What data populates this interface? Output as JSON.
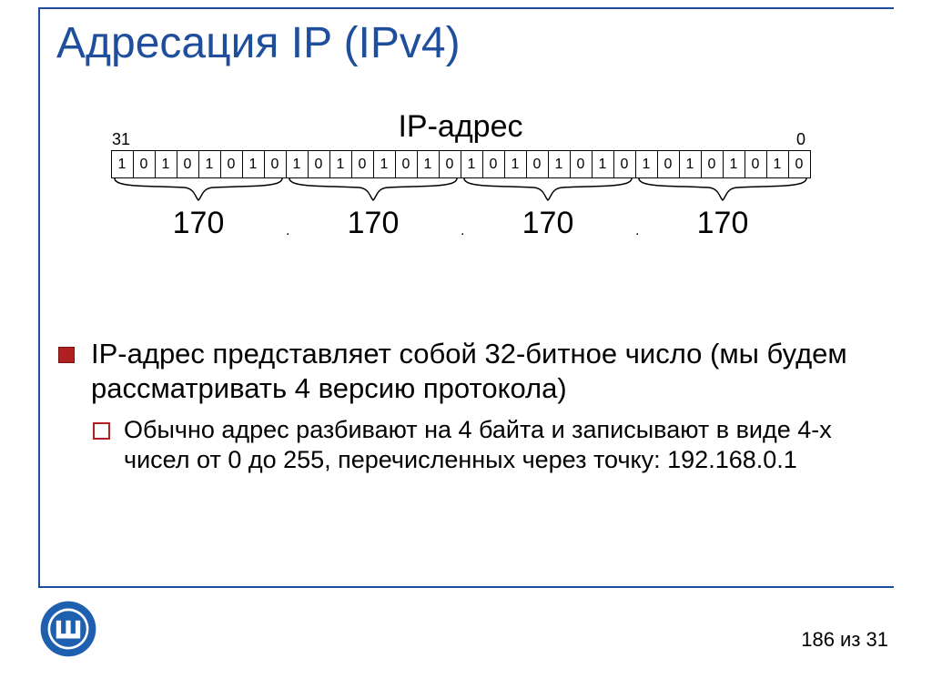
{
  "title": "Адресация IP (IPv4)",
  "diagram": {
    "heading": "IP-адрес",
    "bit_hi": "31",
    "bit_lo": "0",
    "bits": [
      "1",
      "0",
      "1",
      "0",
      "1",
      "0",
      "1",
      "0",
      "1",
      "0",
      "1",
      "0",
      "1",
      "0",
      "1",
      "0",
      "1",
      "0",
      "1",
      "0",
      "1",
      "0",
      "1",
      "0",
      "1",
      "0",
      "1",
      "0",
      "1",
      "0",
      "1",
      "0"
    ],
    "octets": [
      "170",
      "170",
      "170",
      "170"
    ],
    "dot": ".",
    "brace_stroke": "#000000",
    "cell_border": "#000000"
  },
  "bullets": {
    "l1": "IP-адрес представляет собой 32-битное число (мы будем рассматривать 4 версию протокола)",
    "l2": "Обычно адрес разбивают на 4 байта и записывают в виде 4-х чисел от 0 до 255, перечисленных через точку: 192.168.0.1",
    "accent_color": "#b02020"
  },
  "footer": {
    "page_label": "186 из 31",
    "line_color": "#1f4e9c"
  },
  "logo": {
    "ring_color": "#1f5fb0",
    "symbol_color": "#ffffff"
  }
}
